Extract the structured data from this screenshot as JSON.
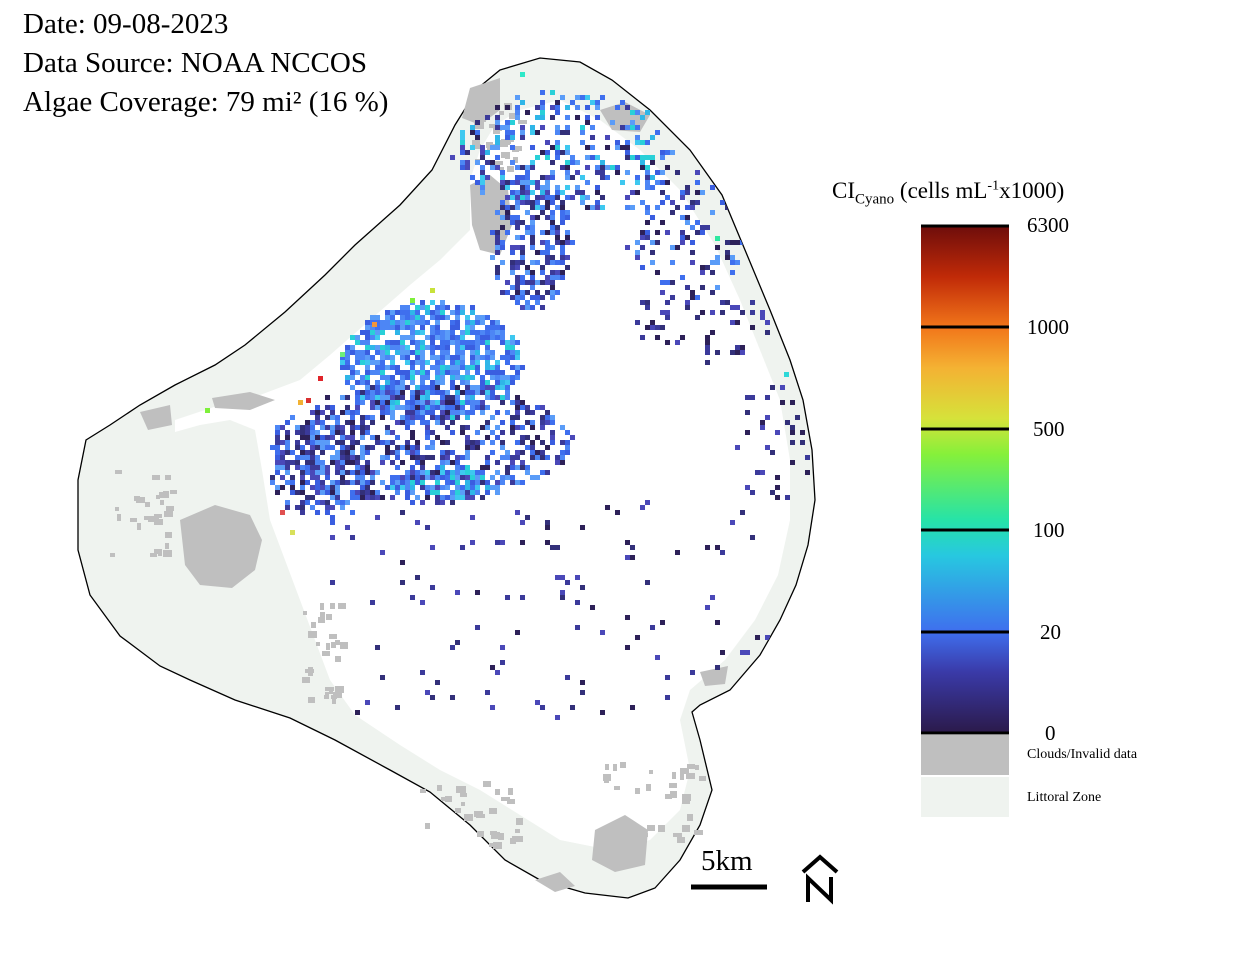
{
  "header": {
    "date": "Date: 09-08-2023",
    "source": "Data Source: NOAA NCCOS",
    "coverage": "Algae Coverage: 79 mi² (16 %)"
  },
  "legend": {
    "title_main": "CI",
    "title_sub": "Cyano",
    "title_rest_a": " (cells mL",
    "title_sup": "-1",
    "title_rest_b": "x1000)",
    "ticks": [
      "6300",
      "1000",
      "500",
      "100",
      "20",
      "0"
    ],
    "categories": [
      {
        "label": "Clouds/Invalid data",
        "color": "#bfbfbf"
      },
      {
        "label": "Littoral Zone",
        "color": "#eff3ef"
      }
    ],
    "gradient_colors": [
      "#2b1a4a",
      "#3f5fe8",
      "#27c8e0",
      "#2ee89a",
      "#a8f02e",
      "#f4c433",
      "#f2761a",
      "#c02a08",
      "#6e0d0b"
    ]
  },
  "scale_bar": {
    "label": "5km"
  },
  "north_arrow": {
    "label": "N"
  },
  "colors": {
    "littoral": "#eff3ef",
    "cloud": "#bfbfbf",
    "lake_outline": "#000000"
  }
}
